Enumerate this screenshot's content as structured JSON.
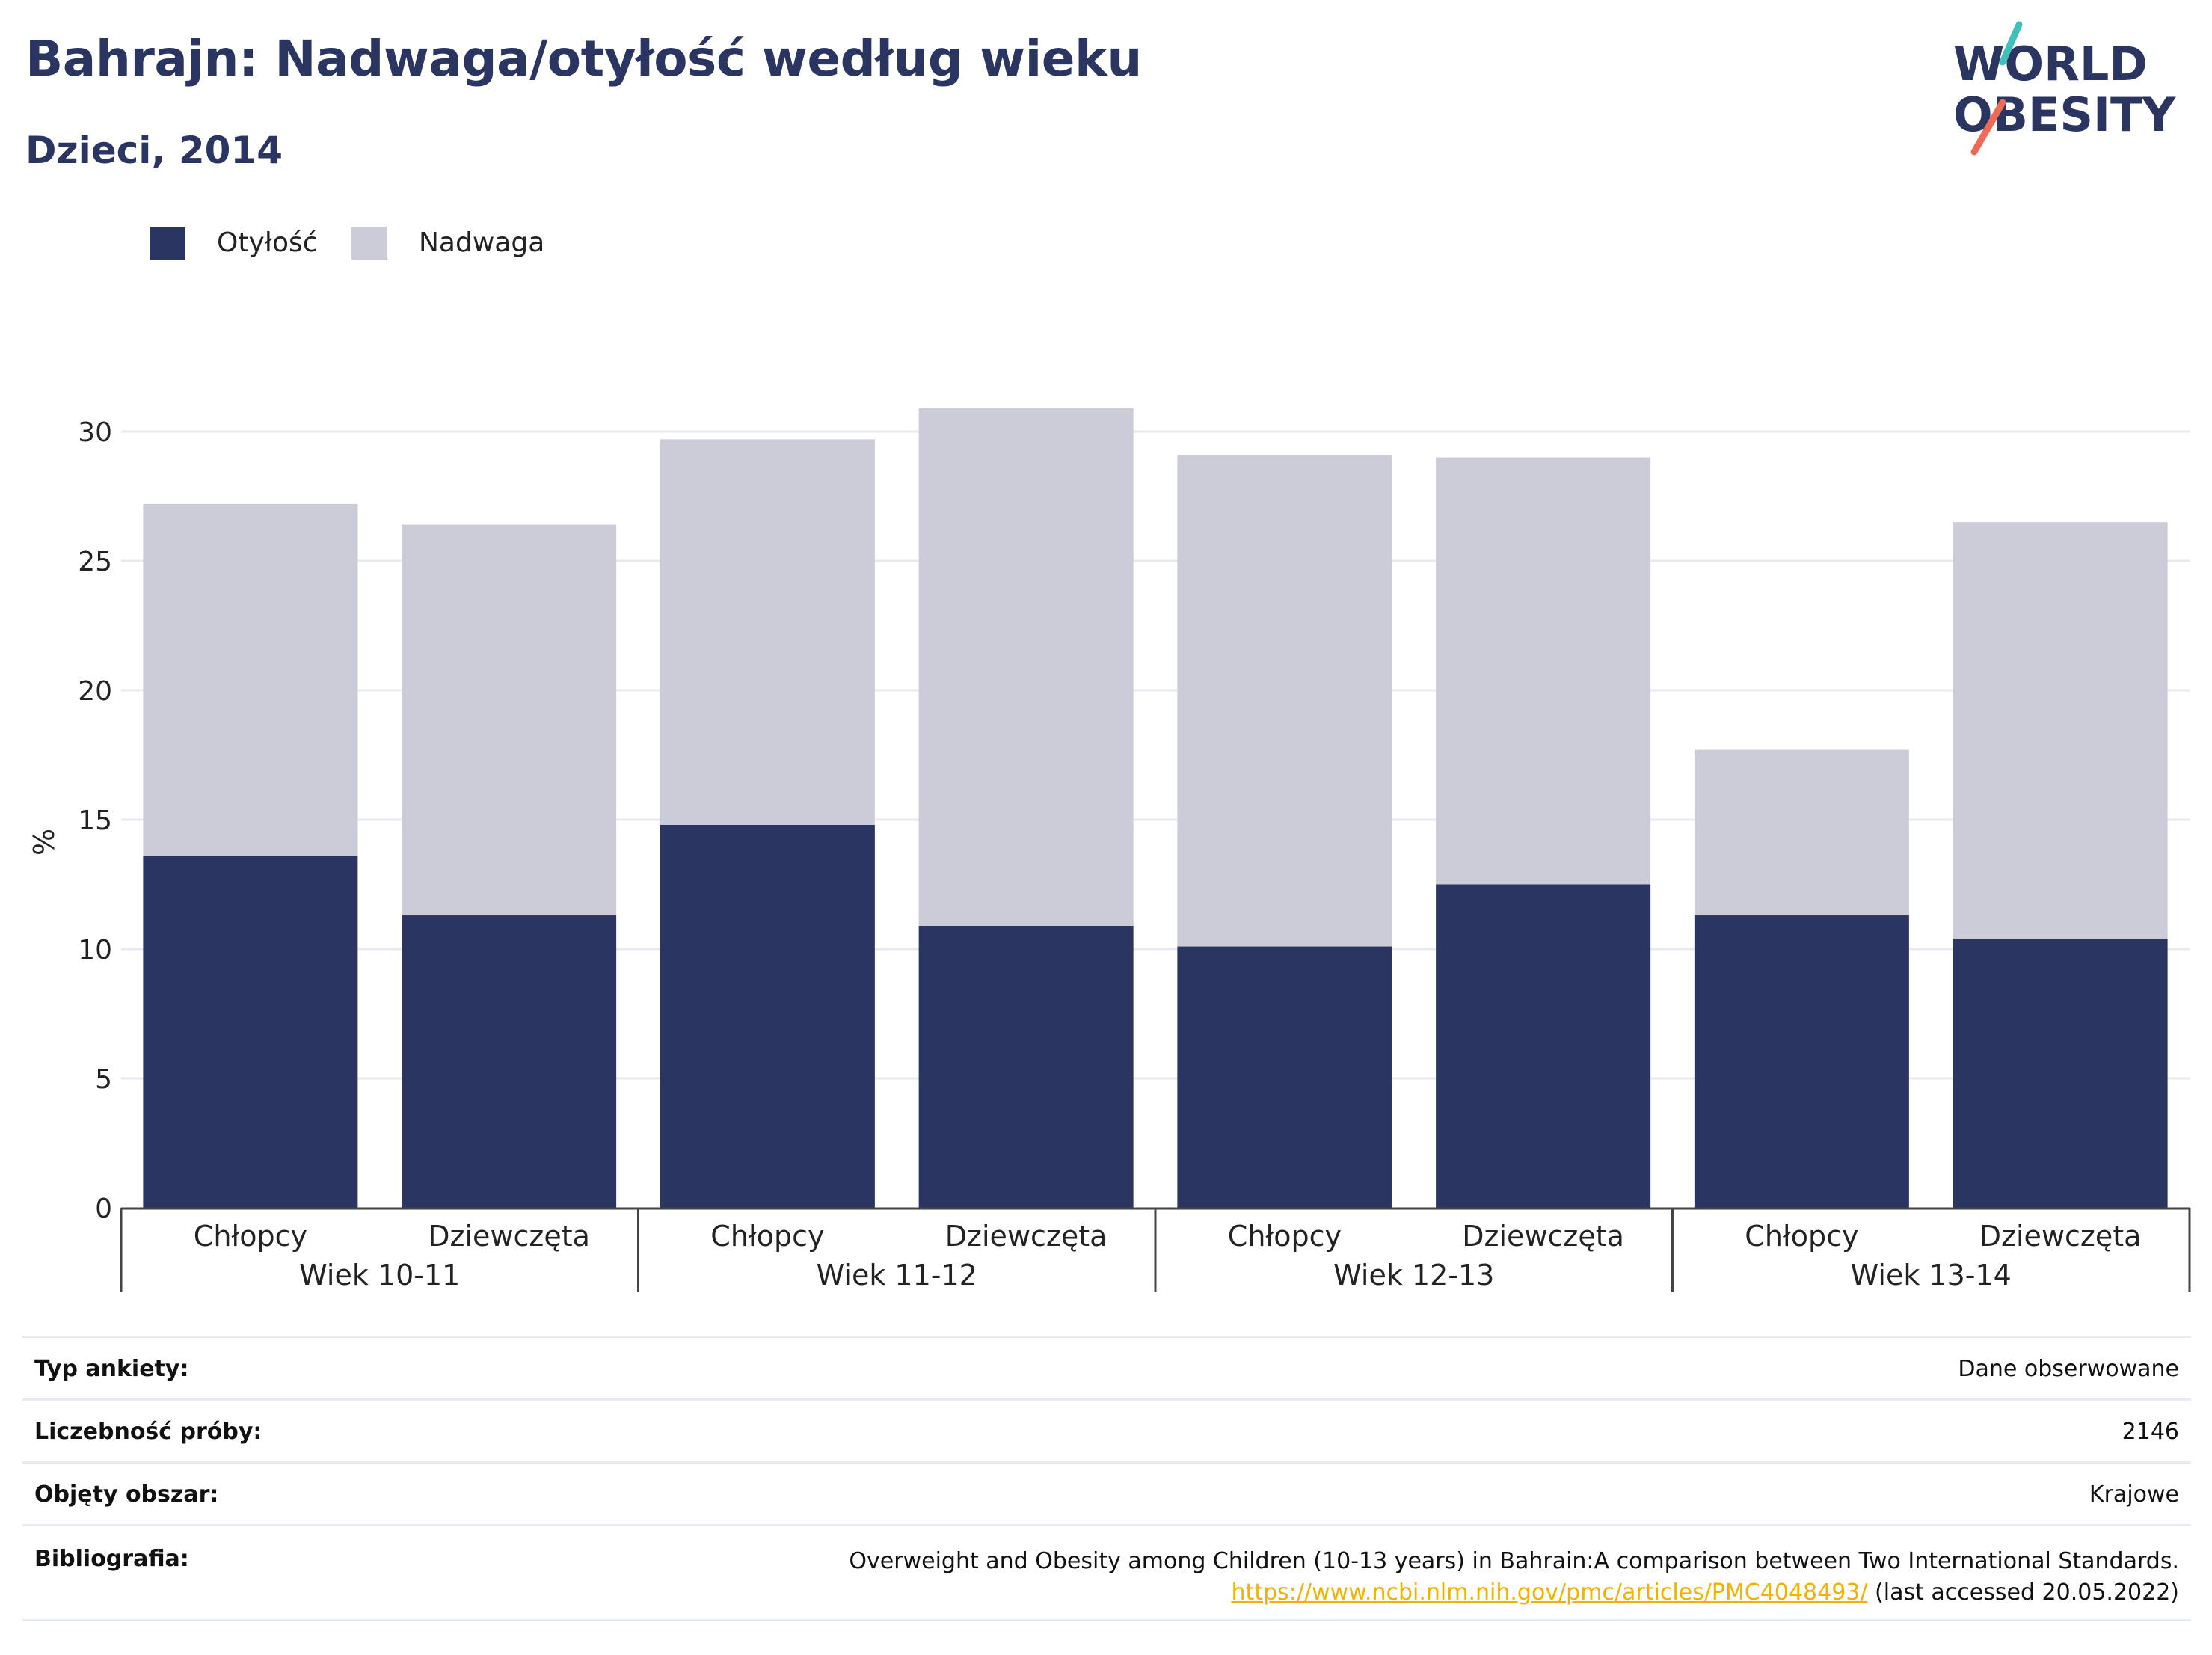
{
  "title": "Bahrajn: Nadwaga/otyłość według wieku",
  "subtitle": "Dzieci, 2014",
  "logo": {
    "line1": "WORLD",
    "line2": "OBESITY"
  },
  "legend": [
    {
      "label": "Otyłość",
      "color": "#2a3562"
    },
    {
      "label": "Nadwaga",
      "color": "#cbccd8"
    }
  ],
  "chart_data": {
    "type": "bar",
    "stacked": true,
    "ylabel": "%",
    "ylim": [
      0,
      30
    ],
    "yticks": [
      0,
      5,
      10,
      15,
      20,
      25,
      30
    ],
    "grid": true,
    "legend_position": "top-left",
    "groups": [
      {
        "label": "Wiek 10-11",
        "categories": [
          "Chłopcy",
          "Dziewczęta"
        ]
      },
      {
        "label": "Wiek 11-12",
        "categories": [
          "Chłopcy",
          "Dziewczęta"
        ]
      },
      {
        "label": "Wiek 12-13",
        "categories": [
          "Chłopcy",
          "Dziewczęta"
        ]
      },
      {
        "label": "Wiek 13-14",
        "categories": [
          "Chłopcy",
          "Dziewczęta"
        ]
      }
    ],
    "categories": [
      "Chłopcy",
      "Dziewczęta",
      "Chłopcy",
      "Dziewczęta",
      "Chłopcy",
      "Dziewczęta",
      "Chłopcy",
      "Dziewczęta"
    ],
    "series": [
      {
        "name": "Otyłość",
        "color": "#2a3562",
        "values": [
          13.6,
          11.3,
          14.8,
          10.9,
          10.1,
          12.5,
          11.3,
          10.4
        ]
      },
      {
        "name": "Nadwaga",
        "color": "#cbccd8",
        "values": [
          13.6,
          15.1,
          14.9,
          20.0,
          19.0,
          16.5,
          6.4,
          16.1
        ]
      }
    ]
  },
  "info": [
    {
      "key": "Typ ankiety:",
      "value": "Dane obserwowane"
    },
    {
      "key": "Liczebność próby:",
      "value": "2146"
    },
    {
      "key": "Objęty obszar:",
      "value": "Krajowe"
    },
    {
      "key": "Bibliografia:",
      "value": "Overweight and Obesity among Children (10-13 years) in Bahrain:A comparison between Two International Standards.",
      "link": "https://www.ncbi.nlm.nih.gov/pmc/articles/PMC4048493/",
      "suffix": " (last accessed 20.05.2022)"
    }
  ]
}
